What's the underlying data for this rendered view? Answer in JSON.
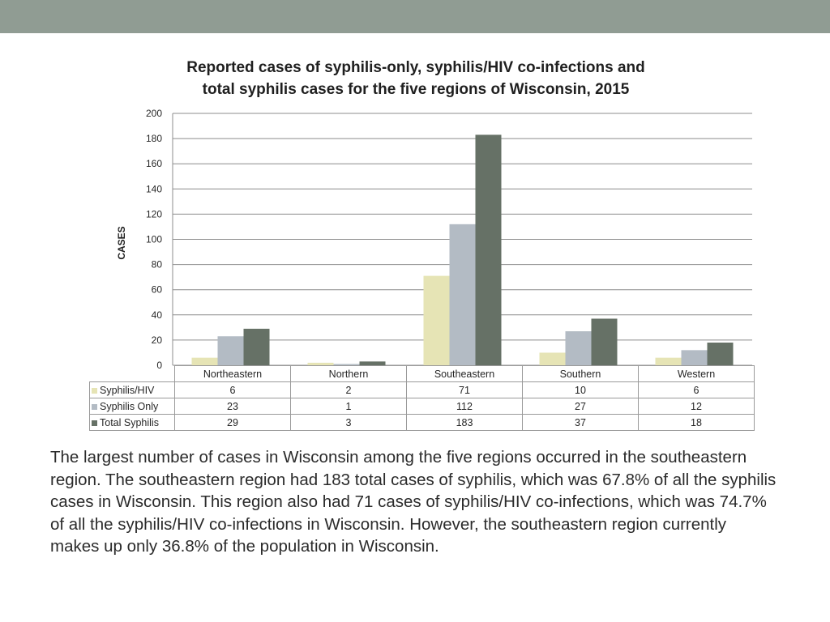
{
  "header": {
    "bar_color": "#909c93"
  },
  "chart_data": {
    "type": "bar",
    "title_lines": [
      "Reported cases of syphilis-only, syphilis/HIV co-infections and",
      "total syphilis cases for the five regions of Wisconsin, 2015"
    ],
    "ylabel": "CASES",
    "xlabel": "",
    "ylim": [
      0,
      200
    ],
    "yticks": [
      0,
      20,
      40,
      60,
      80,
      100,
      120,
      140,
      160,
      180,
      200
    ],
    "grid": true,
    "legend_placement": "data-table",
    "categories": [
      "Northeastern",
      "Northern",
      "Southeastern",
      "Southern",
      "Western"
    ],
    "series": [
      {
        "name": "Syphilis/HIV",
        "color": "#e6e4b5",
        "values": [
          6,
          2,
          71,
          10,
          6
        ]
      },
      {
        "name": "Syphilis Only",
        "color": "#b3bbc4",
        "values": [
          23,
          1,
          112,
          27,
          12
        ]
      },
      {
        "name": "Total Syphilis",
        "color": "#667166",
        "values": [
          29,
          3,
          183,
          37,
          18
        ]
      }
    ]
  },
  "summary": "The largest number of cases in Wisconsin among the five regions occurred in the southeastern region. The southeastern region had 183 total cases of syphilis, which was 67.8% of all the syphilis cases in Wisconsin. This region also had 71 cases of syphilis/HIV co-infections, which was 74.7% of all the syphilis/HIV co-infections in Wisconsin. However, the southeastern region currently makes up only 36.8% of the population in Wisconsin."
}
